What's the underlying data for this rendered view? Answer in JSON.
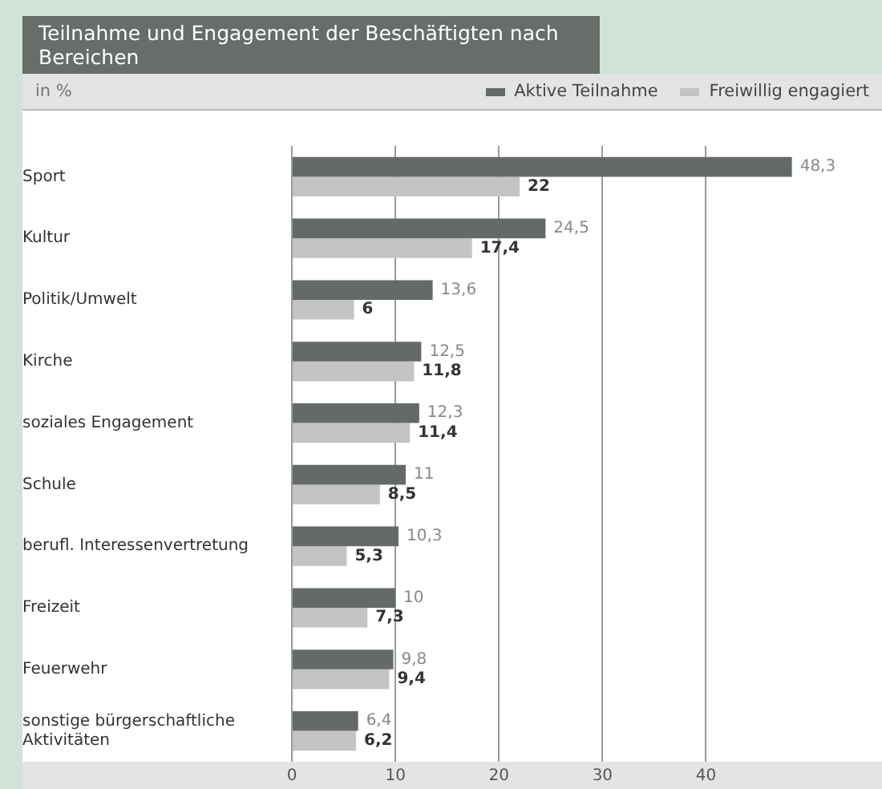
{
  "chart_data": {
    "type": "bar",
    "orientation": "horizontal",
    "title": "Teilnahme und Engagement der Beschäftigten nach Bereichen",
    "subtitle": "in %",
    "categories": [
      "Sport",
      "Kultur",
      "Politik/Umwelt",
      "Kirche",
      "soziales Engagement",
      "Schule",
      "berufl. Interessenvertretung",
      "Freizeit",
      "Feuerwehr",
      "sonstige bürgerschaftliche Aktivitäten"
    ],
    "series": [
      {
        "name": "Aktive Teilnahme",
        "color": "#646b66",
        "values": [
          48.3,
          24.5,
          13.6,
          12.5,
          12.3,
          11,
          10.3,
          10,
          9.8,
          6.4
        ],
        "value_labels": [
          "48,3",
          "24,5",
          "13,6",
          "12,5",
          "12,3",
          "11",
          "10,3",
          "10",
          "9,8",
          "6,4"
        ]
      },
      {
        "name": "Freiwillig engagiert",
        "color": "#c4c4c4",
        "values": [
          22,
          17.4,
          6,
          11.8,
          11.4,
          8.5,
          5.3,
          7.3,
          9.4,
          6.2
        ],
        "value_labels": [
          "22",
          "17,4",
          "6",
          "11,8",
          "11,4",
          "8,5",
          "5,3",
          "7,3",
          "9,4",
          "6,2"
        ]
      }
    ],
    "xlim": [
      0,
      57
    ],
    "xticks": [
      0,
      10,
      20,
      30,
      40
    ],
    "grid": "x",
    "legend": "top right"
  }
}
